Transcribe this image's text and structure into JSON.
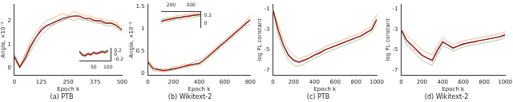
{
  "chart_data": [
    {
      "type": "line",
      "title": "(a) PTB",
      "x_label": "Epoch k",
      "y_label": "Angle, ×10⁻²",
      "x": [
        0,
        25,
        50,
        75,
        100,
        125,
        150,
        175,
        200,
        225,
        250,
        275,
        300,
        325,
        350,
        375,
        400,
        425,
        450,
        475,
        500
      ],
      "xlim": [
        0,
        500
      ],
      "xticks": [
        0,
        125,
        250,
        375,
        500
      ],
      "ylim": [
        -0.3,
        2.7
      ],
      "yticks": [
        0,
        1,
        2
      ],
      "grid": false,
      "series": [
        {
          "color": "#8b1a1a",
          "values": [
            0.5,
            0.05,
            0.4,
            0.9,
            1.3,
            1.6,
            1.8,
            1.9,
            2.0,
            2.1,
            2.15,
            2.2,
            2.2,
            2.1,
            2.1,
            2.0,
            2.0,
            1.9,
            1.9,
            1.8,
            1.6
          ]
        },
        {
          "color": "#f5a25d",
          "values": [
            0.6,
            0.1,
            0.6,
            1.1,
            1.5,
            1.8,
            2.0,
            2.1,
            2.2,
            2.3,
            2.2,
            2.4,
            2.3,
            2.2,
            2.2,
            2.1,
            2.1,
            2.0,
            2.0,
            1.9,
            1.7
          ]
        },
        {
          "color": "#8cc084",
          "values": [
            0.4,
            0.0,
            0.3,
            0.7,
            1.1,
            1.4,
            1.6,
            1.8,
            1.9,
            2.0,
            2.1,
            2.0,
            2.1,
            2.0,
            2.0,
            1.9,
            1.9,
            1.8,
            1.8,
            1.7,
            1.5
          ]
        },
        {
          "color": "#b784b7",
          "values": [
            0.5,
            0.05,
            0.5,
            1.0,
            1.3,
            1.7,
            1.8,
            1.8,
            2.0,
            2.0,
            2.2,
            2.2,
            2.2,
            2.1,
            2.0,
            2.0,
            1.9,
            1.9,
            1.9,
            1.8,
            1.6
          ]
        }
      ]
    },
    {
      "type": "line",
      "title": "(b) Wikitext-2",
      "x_label": "Epoch k",
      "y_label": "Angle, ×10⁻²",
      "x": [
        0,
        40,
        80,
        120,
        160,
        200,
        240,
        280,
        320,
        360,
        400,
        440,
        480,
        520,
        560,
        600,
        640,
        680,
        720,
        760,
        800
      ],
      "xlim": [
        0,
        800
      ],
      "xticks": [
        0,
        200,
        400,
        600,
        800
      ],
      "ylim": [
        -0.05,
        1.55
      ],
      "yticks": [
        0,
        0.5,
        1,
        1.5
      ],
      "grid": false,
      "series": [
        {
          "color": "#8b1a1a",
          "values": [
            0.25,
            0.1,
            0.08,
            0.06,
            0.07,
            0.1,
            0.12,
            0.15,
            0.18,
            0.2,
            0.22,
            0.3,
            0.4,
            0.5,
            0.6,
            0.7,
            0.8,
            0.9,
            1.0,
            1.1,
            1.2
          ]
        },
        {
          "color": "#f5a25d",
          "values": [
            0.3,
            0.15,
            0.1,
            0.1,
            0.1,
            0.15,
            0.15,
            0.2,
            0.2,
            0.25,
            0.3,
            0.35,
            0.45,
            0.55,
            0.65,
            0.75,
            0.85,
            0.95,
            1.05,
            1.15,
            1.3
          ]
        },
        {
          "color": "#8cc084",
          "values": [
            0.2,
            0.05,
            0.05,
            0.03,
            0.05,
            0.07,
            0.1,
            0.12,
            0.15,
            0.17,
            0.18,
            0.25,
            0.35,
            0.45,
            0.55,
            0.65,
            0.75,
            0.85,
            0.95,
            1.05,
            1.1
          ]
        },
        {
          "color": "#b784b7",
          "values": [
            0.25,
            0.1,
            0.1,
            0.05,
            0.08,
            0.1,
            0.12,
            0.15,
            0.18,
            0.2,
            0.22,
            0.3,
            0.4,
            0.5,
            0.62,
            0.7,
            0.8,
            0.92,
            1.0,
            1.12,
            1.2
          ]
        }
      ]
    },
    {
      "type": "line",
      "title": "(c) PTB",
      "x_label": "Epoch k",
      "y_label": "log PL constant",
      "x": [
        0,
        50,
        100,
        150,
        200,
        250,
        300,
        350,
        400,
        450,
        500,
        550,
        600,
        650,
        700,
        750,
        800,
        850,
        900,
        950,
        1000
      ],
      "xlim": [
        0,
        1000
      ],
      "xticks": [
        0,
        200,
        400,
        600,
        800,
        1000
      ],
      "ylim": [
        -7.5,
        -0.5
      ],
      "yticks": [
        -7,
        -5,
        -3,
        -1
      ],
      "grid": false,
      "series": [
        {
          "color": "#8b1a1a",
          "values": [
            -1,
            -3,
            -4.5,
            -5.5,
            -6,
            -6.2,
            -6,
            -5.8,
            -5.5,
            -5.3,
            -5,
            -4.8,
            -4.6,
            -4.4,
            -4.2,
            -4,
            -3.8,
            -3.6,
            -3.3,
            -3,
            -2
          ]
        },
        {
          "color": "#f5a25d",
          "values": [
            -1,
            -2.5,
            -4,
            -5,
            -5.5,
            -5.9,
            -5.7,
            -5.5,
            -5.2,
            -5,
            -4.7,
            -4.5,
            -4.3,
            -4.1,
            -3.9,
            -3.7,
            -3.5,
            -3.3,
            -3,
            -2.7,
            -1.5
          ]
        },
        {
          "color": "#8cc084",
          "values": [
            -1,
            -3.5,
            -5,
            -6,
            -6.5,
            -6.6,
            -6.4,
            -6.1,
            -5.8,
            -5.6,
            -5.3,
            -5.1,
            -4.9,
            -4.7,
            -4.5,
            -4.3,
            -4.1,
            -3.9,
            -3.6,
            -3.3,
            -2.5
          ]
        },
        {
          "color": "#b784b7",
          "values": [
            -1,
            -3,
            -4.5,
            -5.6,
            -6.1,
            -6.2,
            -6.1,
            -5.8,
            -5.5,
            -5.2,
            -5,
            -4.8,
            -4.6,
            -4.4,
            -4.2,
            -4,
            -3.8,
            -3.6,
            -3.3,
            -3,
            -2
          ]
        }
      ]
    },
    {
      "type": "line",
      "title": "(d) Wikitext-2",
      "x_label": "Epoch k",
      "y_label": "log PL constant",
      "x": [
        0,
        50,
        100,
        150,
        200,
        250,
        300,
        350,
        400,
        450,
        500,
        550,
        600,
        650,
        700,
        750,
        800,
        850,
        900,
        950,
        1000
      ],
      "xlim": [
        0,
        1000
      ],
      "xticks": [
        0,
        200,
        400,
        600,
        800,
        1000
      ],
      "ylim": [
        -7.5,
        -0.5
      ],
      "yticks": [
        -7,
        -5,
        -3,
        -1
      ],
      "grid": false,
      "series": [
        {
          "color": "#8b1a1a",
          "values": [
            -3,
            -4,
            -4.5,
            -5,
            -5.5,
            -5.8,
            -6,
            -5,
            -4.2,
            -4.5,
            -4.8,
            -4.6,
            -4.4,
            -4.3,
            -4.2,
            -4.1,
            -4,
            -3.9,
            -3.8,
            -3.7,
            -3.5
          ]
        },
        {
          "color": "#f5a25d",
          "values": [
            -3,
            -3.5,
            -4,
            -4.5,
            -5,
            -5.3,
            -5.5,
            -4.5,
            -3.8,
            -4.2,
            -4.5,
            -4.3,
            -4.1,
            -4,
            -3.9,
            -3.8,
            -3.7,
            -3.6,
            -3.5,
            -3.4,
            -3.2
          ]
        },
        {
          "color": "#8cc084",
          "values": [
            -3,
            -4.5,
            -5,
            -5.5,
            -6,
            -6.3,
            -6.5,
            -5.5,
            -4.6,
            -4.8,
            -5.1,
            -4.9,
            -4.7,
            -4.6,
            -4.5,
            -4.4,
            -4.3,
            -4.2,
            -4.1,
            -4,
            -3.8
          ]
        },
        {
          "color": "#b784b7",
          "values": [
            -3,
            -4,
            -4.8,
            -5.2,
            -5.6,
            -5.8,
            -6.2,
            -5.2,
            -4.3,
            -4.5,
            -4.9,
            -4.6,
            -4.5,
            -4.3,
            -4.2,
            -4.1,
            -4,
            -3.9,
            -3.8,
            -3.7,
            -3.6
          ]
        }
      ]
    },
    {
      "type": "line",
      "x": [
        0,
        10,
        20,
        30,
        40,
        50,
        60,
        70,
        80,
        90,
        100
      ],
      "xlim": [
        0,
        110
      ],
      "xticks": [
        50,
        100
      ],
      "ylim": [
        -0.3,
        0.3
      ],
      "yticks": [
        -0.2,
        0,
        0.2
      ],
      "grid": false,
      "series": [
        {
          "color": "#8b1a1a",
          "values": [
            0.15,
            0.0,
            -0.05,
            0.05,
            0.0,
            0.1,
            0.05,
            0.1,
            0.15,
            0.1,
            0.2
          ]
        },
        {
          "color": "#f5a25d",
          "values": [
            0.2,
            0.05,
            0.0,
            0.1,
            0.05,
            0.15,
            0.1,
            0.15,
            0.2,
            0.15,
            0.25
          ]
        },
        {
          "color": "#8cc084",
          "values": [
            0.1,
            -0.05,
            -0.1,
            0.0,
            -0.05,
            0.05,
            0.0,
            0.05,
            0.1,
            0.05,
            0.15
          ]
        },
        {
          "color": "#b784b7",
          "values": [
            0.15,
            0.0,
            0.0,
            0.05,
            0.05,
            0.1,
            0.1,
            0.1,
            0.15,
            0.15,
            0.2
          ]
        }
      ]
    },
    {
      "type": "line",
      "x": [
        150,
        170,
        190,
        210,
        230,
        250,
        270,
        290,
        310,
        330,
        350
      ],
      "xlim": [
        150,
        350
      ],
      "xticks": [
        200,
        300
      ],
      "ylim": [
        -0.1,
        0.3
      ],
      "yticks": [
        0,
        0.2
      ],
      "grid": false,
      "series": [
        {
          "color": "#8b1a1a",
          "values": [
            0.05,
            0.08,
            0.1,
            0.12,
            0.14,
            0.15,
            0.17,
            0.18,
            0.2,
            0.21,
            0.22
          ]
        },
        {
          "color": "#f5a25d",
          "values": [
            0.1,
            0.12,
            0.15,
            0.16,
            0.2,
            0.2,
            0.22,
            0.22,
            0.25,
            0.25,
            0.27
          ]
        },
        {
          "color": "#8cc084",
          "values": [
            0.0,
            0.04,
            0.06,
            0.08,
            0.1,
            0.1,
            0.12,
            0.14,
            0.15,
            0.17,
            0.18
          ]
        },
        {
          "color": "#b784b7",
          "values": [
            0.05,
            0.1,
            0.1,
            0.12,
            0.15,
            0.14,
            0.18,
            0.18,
            0.2,
            0.22,
            0.22
          ]
        }
      ]
    }
  ]
}
